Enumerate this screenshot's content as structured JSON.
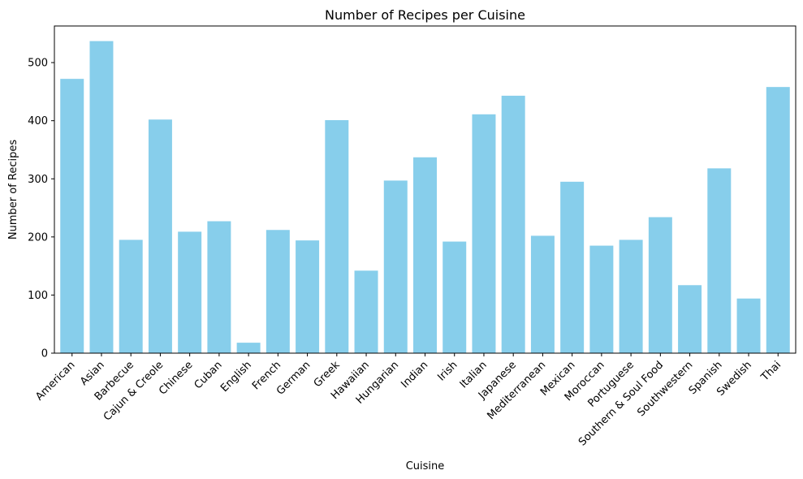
{
  "chart_data": {
    "type": "bar",
    "title": "Number of Recipes per Cuisine",
    "xlabel": "Cuisine",
    "ylabel": "Number of Recipes",
    "ylim": [
      0,
      563
    ],
    "yticks": [
      0,
      100,
      200,
      300,
      400,
      500
    ],
    "bar_color": "#87CEEB",
    "grid": false,
    "legend": "none",
    "categories": [
      "American",
      "Asian",
      "Barbecue",
      "Cajun & Creole",
      "Chinese",
      "Cuban",
      "English",
      "French",
      "German",
      "Greek",
      "Hawaiian",
      "Hungarian",
      "Indian",
      "Irish",
      "Italian",
      "Japanese",
      "Mediterranean",
      "Mexican",
      "Moroccan",
      "Portuguese",
      "Southern & Soul Food",
      "Southwestern",
      "Spanish",
      "Swedish",
      "Thai"
    ],
    "values": [
      472,
      537,
      195,
      402,
      209,
      227,
      18,
      212,
      194,
      401,
      142,
      297,
      337,
      192,
      411,
      443,
      202,
      295,
      185,
      195,
      234,
      117,
      318,
      94,
      458
    ]
  }
}
